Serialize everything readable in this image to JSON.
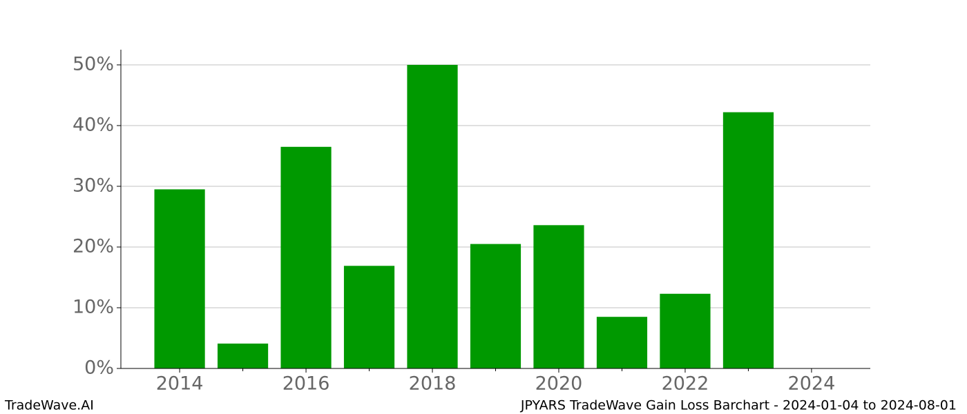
{
  "chart_data": {
    "type": "bar",
    "x": [
      2014,
      2015,
      2016,
      2017,
      2018,
      2019,
      2020,
      2021,
      2022,
      2023
    ],
    "values": [
      29.5,
      4.1,
      36.5,
      16.9,
      50.0,
      20.5,
      23.6,
      8.5,
      12.3,
      42.2
    ],
    "color": "#009900",
    "xlim": [
      2013.07,
      2024.93
    ],
    "xticks": [
      2014,
      2016,
      2018,
      2020,
      2022,
      2024
    ],
    "ylim": [
      0,
      52.5
    ],
    "yticks": [
      {
        "value": 0,
        "label": "0%"
      },
      {
        "value": 10,
        "label": "10%"
      },
      {
        "value": 20,
        "label": "20%"
      },
      {
        "value": 30,
        "label": "30%"
      },
      {
        "value": 40,
        "label": "40%"
      },
      {
        "value": 50,
        "label": "50%"
      }
    ],
    "grid": true
  },
  "footer": {
    "left": "TradeWave.AI",
    "right": "JPYARS TradeWave Gain Loss Barchart - 2024-01-04 to 2024-08-01"
  }
}
